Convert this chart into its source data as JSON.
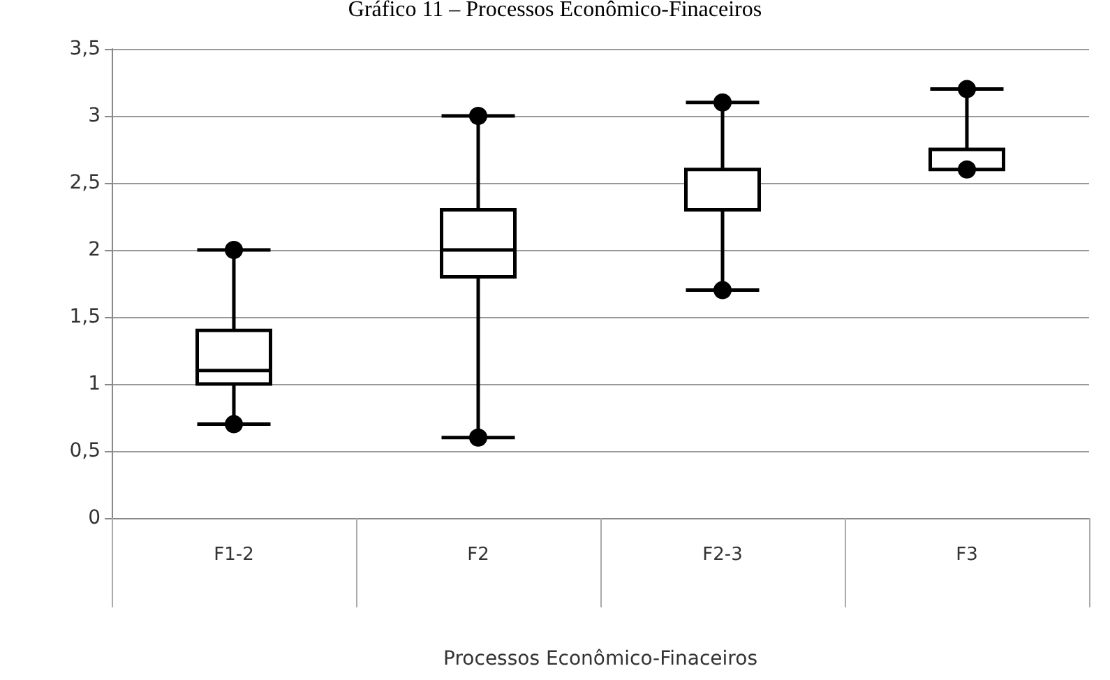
{
  "chart_data": {
    "type": "box",
    "title": "Gráfico 11 – Processos Econômico-Finaceiros",
    "xlabel": "Processos Econômico-Finaceiros",
    "categories": [
      "F1-2",
      "F2",
      "F2-3",
      "F3"
    ],
    "boxes": [
      {
        "low": 0.7,
        "q1": 1.0,
        "median": 1.1,
        "q3": 1.4,
        "high": 2.0
      },
      {
        "low": 0.6,
        "q1": 1.8,
        "median": 2.0,
        "q3": 2.3,
        "high": 3.0
      },
      {
        "low": 1.7,
        "q1": 2.3,
        "median": 2.6,
        "q3": 2.6,
        "high": 3.1
      },
      {
        "low": 2.6,
        "q1": 2.6,
        "median": 2.6,
        "q3": 2.75,
        "high": 3.2
      }
    ],
    "color": "#000000",
    "ylim": [
      0,
      3.5
    ],
    "yticks": [
      {
        "value": 0,
        "label": "0"
      },
      {
        "value": 0.5,
        "label": "0,5"
      },
      {
        "value": 1,
        "label": "1"
      },
      {
        "value": 1.5,
        "label": "1,5"
      },
      {
        "value": 2,
        "label": "2"
      },
      {
        "value": 2.5,
        "label": "2,5"
      },
      {
        "value": 3,
        "label": "3"
      },
      {
        "value": 3.5,
        "label": "3,5"
      }
    ],
    "grid": "y",
    "marker": "circle"
  }
}
